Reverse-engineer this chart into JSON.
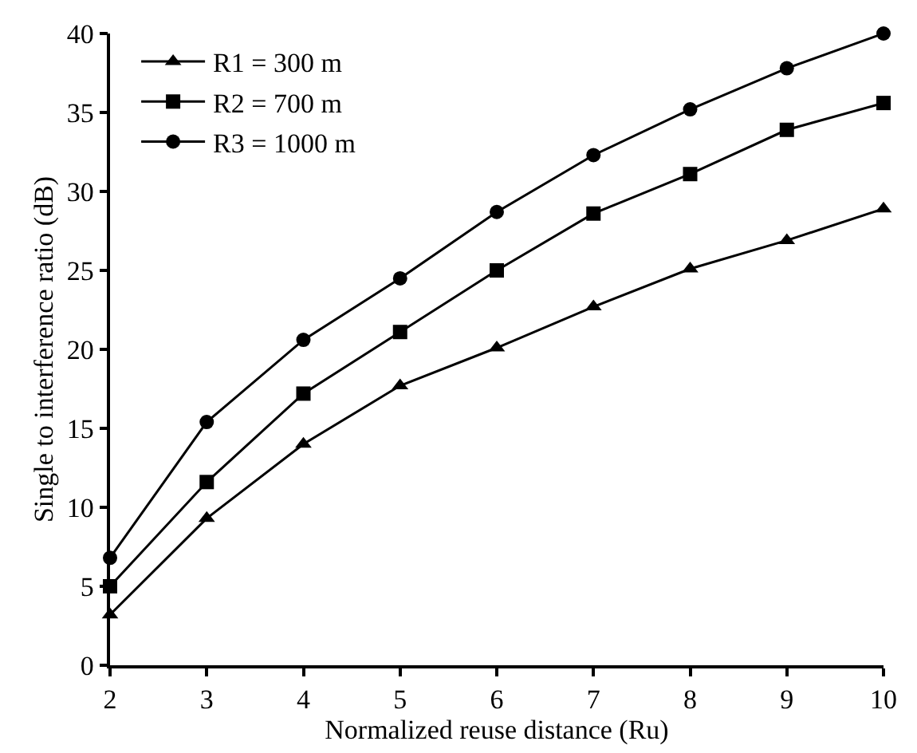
{
  "chart_data": {
    "type": "line",
    "xlabel": "Normalized reuse distance (Ru)",
    "ylabel": "Single to interference ratio (dB)",
    "x": [
      2,
      3,
      4,
      5,
      6,
      7,
      8,
      9,
      10
    ],
    "series": [
      {
        "name": "R1 = 300 m",
        "color": "#000000",
        "marker": "triangle",
        "values": [
          3.2,
          9.3,
          14.0,
          17.7,
          20.1,
          22.7,
          25.1,
          26.9,
          28.9
        ]
      },
      {
        "name": "R2 = 700 m",
        "color": "#000000",
        "marker": "square",
        "values": [
          5.0,
          11.6,
          17.2,
          21.1,
          25.0,
          28.6,
          31.1,
          33.9,
          35.6
        ]
      },
      {
        "name": "R3 = 1000 m",
        "color": "#000000",
        "marker": "circle",
        "values": [
          6.8,
          15.4,
          20.6,
          24.5,
          28.7,
          32.3,
          35.2,
          37.8,
          40.0
        ]
      }
    ],
    "xlim": [
      2,
      10
    ],
    "xticks": [
      2,
      3,
      4,
      5,
      6,
      7,
      8,
      9,
      10
    ],
    "ylim": [
      0,
      40
    ],
    "yticks": [
      0,
      5,
      10,
      15,
      20,
      25,
      30,
      35,
      40
    ],
    "legend": "top left",
    "line_style": "solid"
  }
}
